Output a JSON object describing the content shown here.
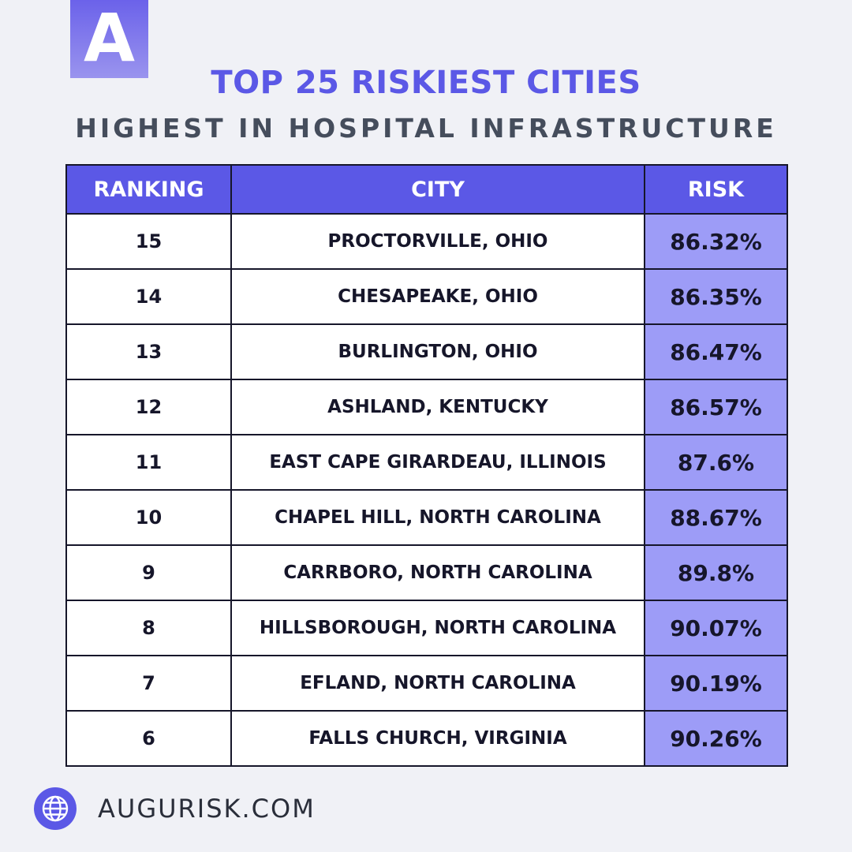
{
  "brand": {
    "logo_letter": "A",
    "accent_color": "#5b58e6",
    "risk_cell_color": "#9d9cf7"
  },
  "header": {
    "title": "TOP 25 RISKIEST CITIES",
    "subtitle": "HIGHEST IN HOSPITAL INFRASTRUCTURE"
  },
  "table": {
    "columns": [
      "RANKING",
      "CITY",
      "RISK"
    ],
    "rows": [
      {
        "ranking": "15",
        "city": "PROCTORVILLE, OHIO",
        "risk": "86.32%"
      },
      {
        "ranking": "14",
        "city": "CHESAPEAKE, OHIO",
        "risk": "86.35%"
      },
      {
        "ranking": "13",
        "city": "BURLINGTON, OHIO",
        "risk": "86.47%"
      },
      {
        "ranking": "12",
        "city": "ASHLAND, KENTUCKY",
        "risk": "86.57%"
      },
      {
        "ranking": "11",
        "city": "EAST CAPE GIRARDEAU, ILLINOIS",
        "risk": "87.6%"
      },
      {
        "ranking": "10",
        "city": "CHAPEL HILL, NORTH CAROLINA",
        "risk": "88.67%"
      },
      {
        "ranking": "9",
        "city": "CARRBORO, NORTH CAROLINA",
        "risk": "89.8%"
      },
      {
        "ranking": "8",
        "city": "HILLSBOROUGH, NORTH CAROLINA",
        "risk": "90.07%"
      },
      {
        "ranking": "7",
        "city": "EFLAND, NORTH CAROLINA",
        "risk": "90.19%"
      },
      {
        "ranking": "6",
        "city": "FALLS CHURCH, VIRGINIA",
        "risk": "90.26%"
      }
    ]
  },
  "footer": {
    "icon": "globe-icon",
    "website": "AUGURISK.COM"
  }
}
